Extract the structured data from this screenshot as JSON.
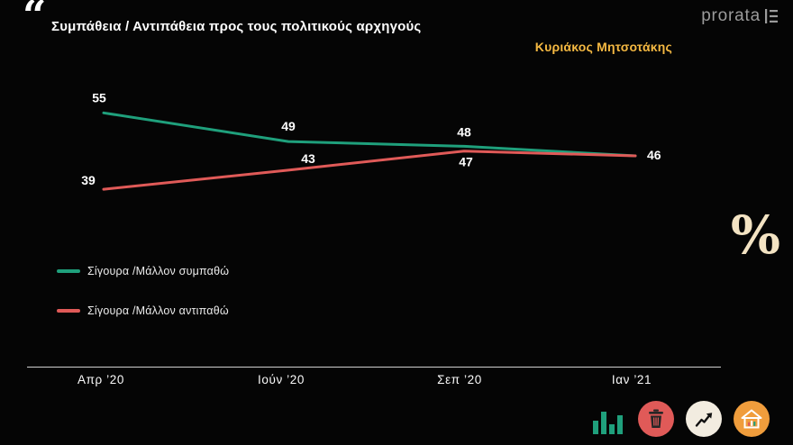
{
  "header": {
    "quote_mark": "“",
    "logo_text": "prorata"
  },
  "decor": {
    "percent_symbol": "%"
  },
  "colors": {
    "background": "#050505",
    "accent_gold": "#f5b942",
    "cream": "#f3e3c3",
    "series_green": "#1fa07c",
    "series_red": "#e05a58"
  },
  "icons": {
    "footer": [
      "bar-chart-icon",
      "trash-icon",
      "trend-up-icon",
      "home-chart-icon"
    ]
  },
  "chart_data": {
    "type": "line",
    "title": "Συμπάθεια / Αντιπάθεια προς τους πολιτικούς αρχηγούς",
    "subtitle": "Κυριάκος Μητσοτάκης",
    "categories": [
      "Απρ ’20",
      "Ιούν ’20",
      "Σεπ ’20",
      "Ιαν ’21"
    ],
    "series": [
      {
        "name": "Σίγουρα /Μάλλον συμπαθώ",
        "color": "#1fa07c",
        "values": [
          55,
          49,
          48,
          46
        ]
      },
      {
        "name": "Σίγουρα /Μάλλον αντιπαθώ",
        "color": "#e05a58",
        "values": [
          39,
          43,
          47,
          46
        ]
      }
    ],
    "ylim": [
      36,
      58
    ],
    "grid": false,
    "legend_position": "left-middle",
    "point_labels": true
  }
}
